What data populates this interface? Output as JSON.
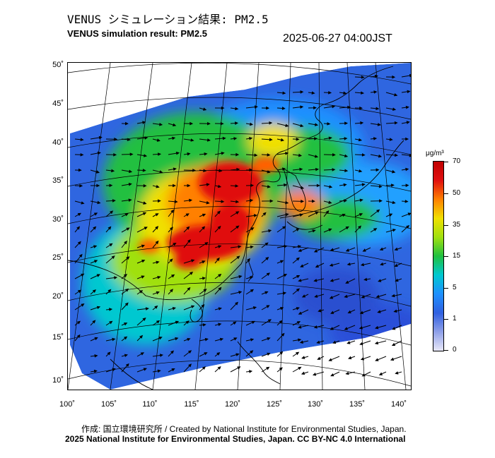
{
  "header": {
    "title_ja": "VENUS シミュレーション結果: PM2.5",
    "title_en": "VENUS simulation result: PM2.5",
    "timestamp": "2025-06-27 04:00JST"
  },
  "map": {
    "lat_labels": [
      "50˚",
      "45˚",
      "40˚",
      "35˚",
      "30˚",
      "25˚",
      "20˚",
      "15˚",
      "10˚"
    ],
    "lon_labels": [
      "100˚",
      "105˚",
      "110˚",
      "115˚",
      "120˚",
      "125˚",
      "130˚",
      "135˚",
      "140˚"
    ],
    "ocean_color": "#2f5ad8",
    "land_background_color": "#1e90ff",
    "high_pollution_color": "#e01010"
  },
  "colorbar": {
    "unit": "μg/m³",
    "ticks": [
      "70",
      "50",
      "35",
      "15",
      "5",
      "1",
      "0"
    ],
    "colors": [
      "#e8e8f8",
      "#8fa0e8",
      "#3060e0",
      "#1e90ff",
      "#00c8d0",
      "#20c040",
      "#a0e010",
      "#f0e000",
      "#ff8000",
      "#e01010",
      "#c00000"
    ]
  },
  "footer": {
    "credit": "作成: 国立環境研究所 / Created by National Institute for Environmental Studies, Japan.",
    "copyright": "2025 National Institute for Environmental Studies, Japan. CC BY-NC 4.0 International"
  }
}
